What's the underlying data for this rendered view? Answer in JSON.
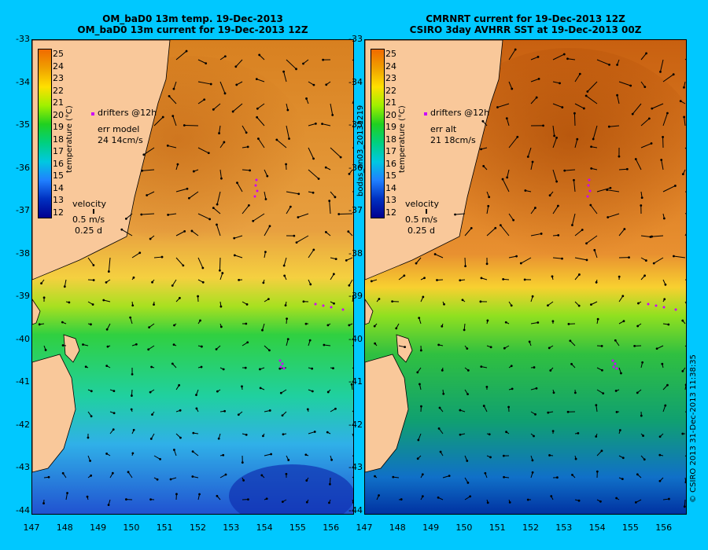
{
  "left_panel": {
    "title_line1": "OM_baD0 13m temp. 19-Dec-2013",
    "title_line2": "OM_baD0 13m current for 19-Dec-2013 12Z",
    "legend_title": "temperature (°C)",
    "drifters_label": "drifters @12h",
    "err_label": "err model",
    "err_value": "24 14cm/s",
    "velocity_label": "velocity",
    "velocity_scale": "0.5 m/s",
    "velocity_time": "0.25 d"
  },
  "right_panel": {
    "title_line1": "CMRNRT current for 19-Dec-2013 12Z",
    "title_line2": "CSIRO 3day AVHRR SST at 19-Dec-2013 00Z",
    "legend_title": "temperature (°C)",
    "drifters_label": "drifters @12h",
    "err_label": "err alt",
    "err_value": "21 18cm/s",
    "velocity_label": "velocity",
    "velocity_scale": "0.5 m/s",
    "velocity_time": "0.25 d"
  },
  "colorbar_ticks": [
    "25",
    "24",
    "23",
    "22",
    "21",
    "20",
    "19",
    "18",
    "17",
    "16",
    "15",
    "14",
    "13",
    "12"
  ],
  "y_ticks": [
    "-33",
    "-34",
    "-35",
    "-36",
    "-37",
    "-38",
    "-39",
    "-40",
    "-41",
    "-42",
    "-43",
    "-44"
  ],
  "x_ticks": [
    "147",
    "148",
    "149",
    "150",
    "151",
    "152",
    "153",
    "154",
    "155",
    "156"
  ],
  "middle_label": "bodas_an03_20131219",
  "footer_label": "© CSIRO 2013   31-Dec-2013 11:38:35",
  "colors": {
    "background": "#00c8ff",
    "land": "#f9c89a",
    "drifter": "#cc00ff",
    "scale": [
      "#f06a00",
      "#f0a000",
      "#ffe000",
      "#a0f000",
      "#20d020",
      "#00d080",
      "#00c8e0",
      "#2080ff",
      "#0030c0",
      "#000090"
    ]
  }
}
